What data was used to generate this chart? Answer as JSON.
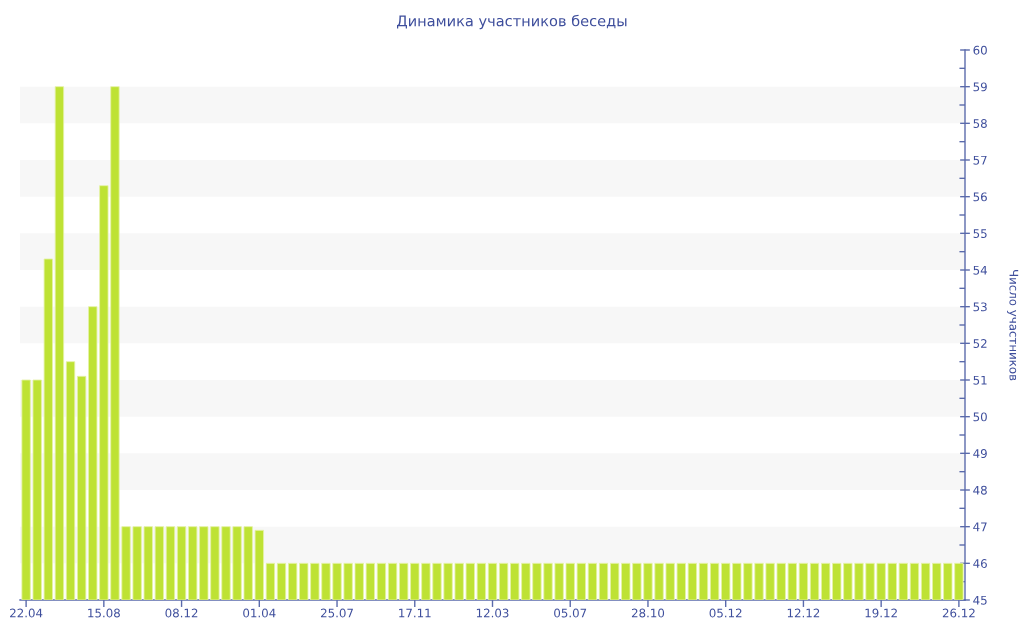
{
  "chart_data": {
    "type": "bar",
    "title": "Динамика участников беседы",
    "ylabel": "Число участников",
    "categories": [
      "22.04",
      null,
      null,
      null,
      null,
      null,
      null,
      "15.08",
      null,
      null,
      null,
      null,
      null,
      null,
      "08.12",
      null,
      null,
      null,
      null,
      null,
      null,
      "01.04",
      null,
      null,
      null,
      null,
      null,
      null,
      "25.07",
      null,
      null,
      null,
      null,
      null,
      null,
      "17.11",
      null,
      null,
      null,
      null,
      null,
      null,
      "12.03",
      null,
      null,
      null,
      null,
      null,
      null,
      "05.07",
      null,
      null,
      null,
      null,
      null,
      null,
      "28.10",
      null,
      null,
      null,
      null,
      null,
      null,
      "05.12",
      null,
      null,
      null,
      null,
      null,
      null,
      "12.12",
      null,
      null,
      null,
      null,
      null,
      null,
      "19.12",
      null,
      null,
      null,
      null,
      null,
      null,
      "26.12"
    ],
    "values": [
      51,
      51,
      54.3,
      59,
      51.5,
      51.1,
      53,
      56.3,
      59,
      47,
      47,
      47,
      47,
      47,
      47,
      47,
      47,
      47,
      47,
      47,
      47,
      46.9,
      46,
      46,
      46,
      46,
      46,
      46,
      46,
      46,
      46,
      46,
      46,
      46,
      46,
      46,
      46,
      46,
      46,
      46,
      46,
      46,
      46,
      46,
      46,
      46,
      46,
      46,
      46,
      46,
      46,
      46,
      46,
      46,
      46,
      46,
      46,
      46,
      46,
      46,
      46,
      46,
      46,
      46,
      46,
      46,
      46,
      46,
      46,
      46,
      46,
      46,
      46,
      46,
      46,
      46,
      46,
      46,
      46,
      46,
      46,
      46,
      46,
      46,
      46
    ],
    "color": "#bee234",
    "ylim": [
      45,
      60
    ],
    "yticks": [
      45,
      {
        "value": 45.5,
        "label": null
      },
      46,
      {
        "value": 46.5,
        "label": null
      },
      47,
      {
        "value": 47.5,
        "label": null
      },
      48,
      {
        "value": 48.5,
        "label": null
      },
      49,
      {
        "value": 49.5,
        "label": null
      },
      50,
      {
        "value": 50.5,
        "label": null
      },
      51,
      {
        "value": 51.5,
        "label": null
      },
      52,
      {
        "value": 52.5,
        "label": null
      },
      53,
      {
        "value": 53.5,
        "label": null
      },
      54,
      {
        "value": 54.5,
        "label": null
      },
      55,
      {
        "value": 55.5,
        "label": null
      },
      56,
      {
        "value": 56.5,
        "label": null
      },
      57,
      {
        "value": 57.5,
        "label": null
      },
      58,
      {
        "value": 58.5,
        "label": null
      },
      59,
      {
        "value": 59.5,
        "label": null
      },
      60
    ],
    "bands": [
      {
        "axis": "y",
        "from": 46,
        "to": 47,
        "color": "#f7f7f7"
      },
      {
        "axis": "y",
        "from": 48,
        "to": 49,
        "color": "#f7f7f7"
      },
      {
        "axis": "y",
        "from": 50,
        "to": 51,
        "color": "#f7f7f7"
      },
      {
        "axis": "y",
        "from": 52,
        "to": 53,
        "color": "#f7f7f7"
      },
      {
        "axis": "y",
        "from": 54,
        "to": 55,
        "color": "#f7f7f7"
      },
      {
        "axis": "y",
        "from": 56,
        "to": 57,
        "color": "#f7f7f7"
      },
      {
        "axis": "y",
        "from": 58,
        "to": 59,
        "color": "#f7f7f7"
      }
    ]
  }
}
